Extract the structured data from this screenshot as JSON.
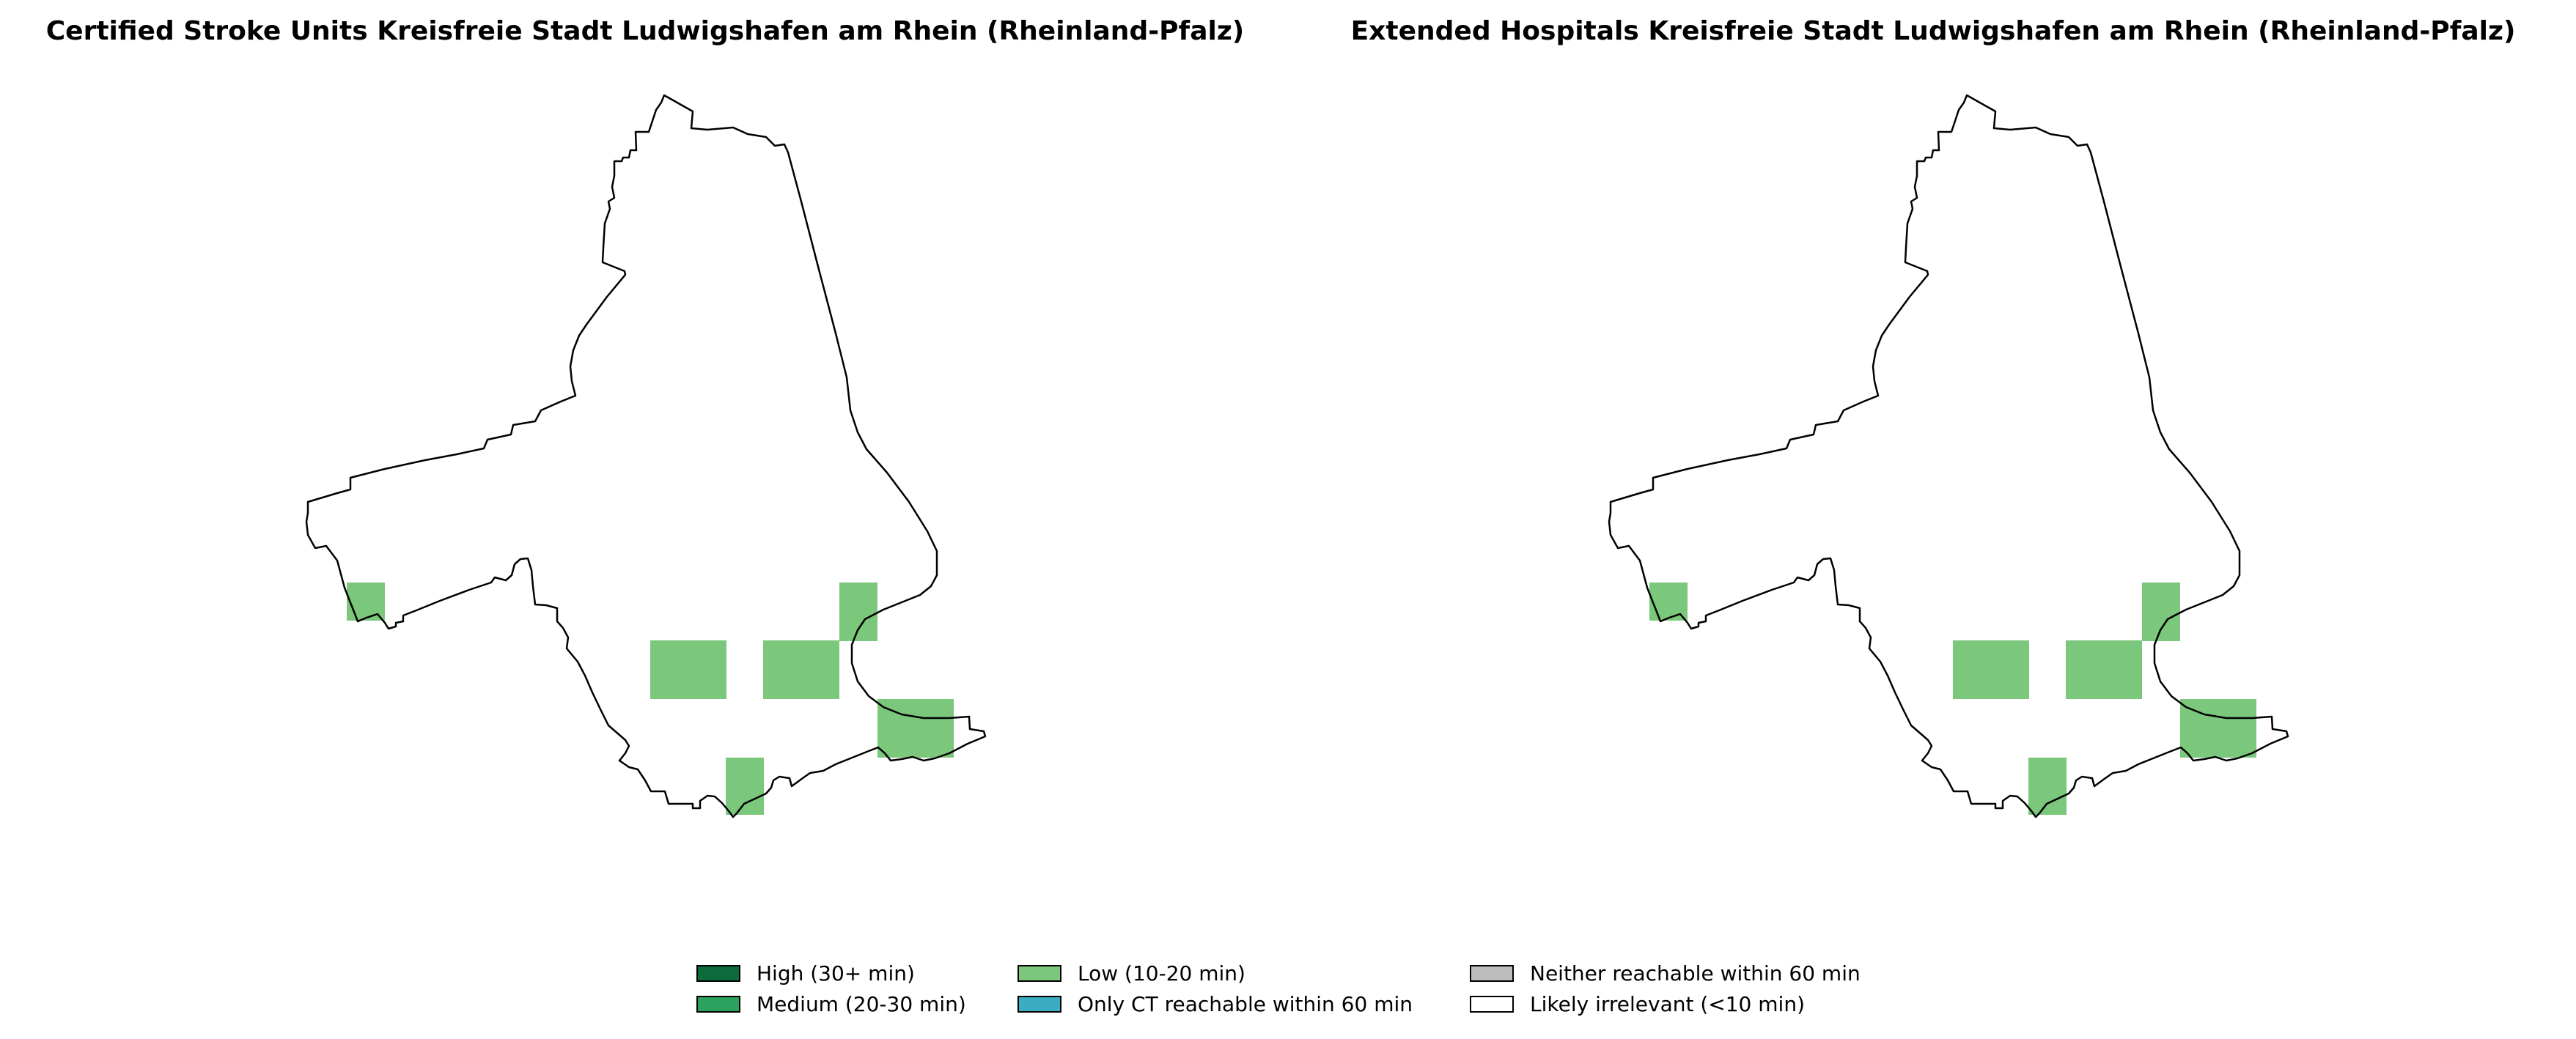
{
  "panels": [
    {
      "title": "Certified Stroke Units Kreisfreie Stadt Ludwigshafen am Rhein (Rheinland-Pfalz)"
    },
    {
      "title": "Extended Hospitals Kreisfreie Stadt Ludwigshafen am Rhein (Rheinland-Pfalz)"
    }
  ],
  "legend": [
    {
      "label": "High (30+ min)",
      "color": "#0b6b3a"
    },
    {
      "label": "Medium (20-30 min)",
      "color": "#2ca25f"
    },
    {
      "label": "Low (10-20 min)",
      "color": "#7bc77b"
    },
    {
      "label": "Only CT reachable within 60 min",
      "color": "#3aadc2"
    },
    {
      "label": "Neither reachable within 60 min",
      "color": "#bdbdbd"
    },
    {
      "label": "Likely irrelevant (<10 min)",
      "color": "#ffffff"
    }
  ],
  "colors": {
    "cell_fill": "#7bc77b",
    "outline": "#000000"
  }
}
